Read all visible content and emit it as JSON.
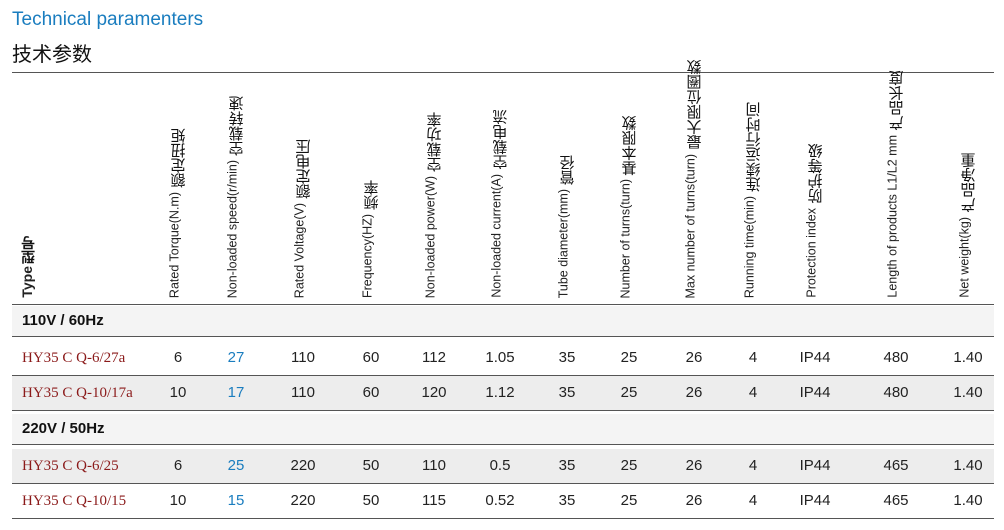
{
  "title_en": "Technical paramenters",
  "title_cn": "技术参数",
  "headers": {
    "type": {
      "cn": "型号",
      "en": "Type"
    },
    "cols": [
      {
        "en": "Rated Torque(N.m)",
        "cn": "额定扭矩"
      },
      {
        "en": "Non-loaded speed(r/min)",
        "cn": "空载转速"
      },
      {
        "en": "Rated Voltage(V)",
        "cn": "额定电压"
      },
      {
        "en": "Frequency(HZ)",
        "cn": "频率"
      },
      {
        "en": "Non-loaded power(W)",
        "cn": "空载功率"
      },
      {
        "en": "Non-loaded current(A)",
        "cn": "空载电流"
      },
      {
        "en": "Tube diameter(mm)",
        "cn": "管径"
      },
      {
        "en": "Number of turns(turn)",
        "cn": "基本限数"
      },
      {
        "en": "Max number of turns(turn)",
        "cn": "最大限位圈数"
      },
      {
        "en": "Running time(min)",
        "cn": "连续运行时间"
      },
      {
        "en": "Protection index",
        "cn": "防护等级"
      },
      {
        "en": "Length of products L1/L2 mm",
        "cn": "产品长度"
      },
      {
        "en": "Net weight(kg)",
        "cn": "产品净重"
      }
    ]
  },
  "groups": [
    {
      "label": "110V / 60Hz",
      "rows": [
        {
          "model": "HY35 C Q-6/27a",
          "values": [
            "6",
            "27",
            "110",
            "60",
            "112",
            "1.05",
            "35",
            "25",
            "26",
            "4",
            "IP44",
            "480",
            "1.40"
          ]
        },
        {
          "model": "HY35 C Q-10/17a",
          "values": [
            "10",
            "17",
            "110",
            "60",
            "120",
            "1.12",
            "35",
            "25",
            "26",
            "4",
            "IP44",
            "480",
            "1.40"
          ]
        }
      ]
    },
    {
      "label": "220V / 50Hz",
      "rows": [
        {
          "model": "HY35 C Q-6/25",
          "values": [
            "6",
            "25",
            "220",
            "50",
            "110",
            "0.5",
            "35",
            "25",
            "26",
            "4",
            "IP44",
            "465",
            "1.40"
          ]
        },
        {
          "model": "HY35 C Q-10/15",
          "values": [
            "10",
            "15",
            "220",
            "50",
            "115",
            "0.52",
            "35",
            "25",
            "26",
            "4",
            "IP44",
            "465",
            "1.40"
          ]
        }
      ]
    }
  ],
  "colors": {
    "accent": "#1a7dbf",
    "model": "#8b1a1a"
  }
}
